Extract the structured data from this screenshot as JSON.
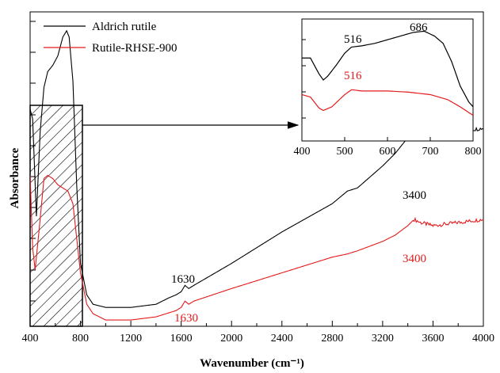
{
  "chart_data": [
    {
      "type": "line",
      "title": "",
      "xlabel": "Wavenumber (cm⁻¹)",
      "ylabel": "Absorbance",
      "xlim": [
        400,
        4000
      ],
      "ylim": [
        0,
        1
      ],
      "x_ticks": [
        "400",
        "800",
        "1200",
        "1600",
        "2000",
        "2400",
        "2800",
        "3200",
        "3600",
        "4000"
      ],
      "y_tick_labels_shown": false,
      "grid": false,
      "legend_position": "top-left",
      "series": [
        {
          "name": "Aldrich rutile",
          "color": "#000000",
          "points": [
            [
              400,
              0.69
            ],
            [
              420,
              0.66
            ],
            [
              450,
              0.35
            ],
            [
              480,
              0.62
            ],
            [
              510,
              0.76
            ],
            [
              540,
              0.81
            ],
            [
              580,
              0.83
            ],
            [
              620,
              0.86
            ],
            [
              660,
              0.92
            ],
            [
              690,
              0.94
            ],
            [
              710,
              0.92
            ],
            [
              740,
              0.78
            ],
            [
              770,
              0.45
            ],
            [
              800,
              0.2
            ],
            [
              850,
              0.1
            ],
            [
              900,
              0.07
            ],
            [
              1000,
              0.06
            ],
            [
              1200,
              0.06
            ],
            [
              1400,
              0.07
            ],
            [
              1500,
              0.09
            ],
            [
              1560,
              0.1
            ],
            [
              1600,
              0.11
            ],
            [
              1630,
              0.13
            ],
            [
              1660,
              0.12
            ],
            [
              1700,
              0.13
            ],
            [
              2000,
              0.2
            ],
            [
              2400,
              0.3
            ],
            [
              2800,
              0.39
            ],
            [
              2920,
              0.43
            ],
            [
              3000,
              0.44
            ],
            [
              3200,
              0.51
            ],
            [
              3300,
              0.55
            ],
            [
              3400,
              0.6
            ],
            [
              3450,
              0.62
            ],
            [
              3500,
              0.62
            ],
            [
              3600,
              0.62
            ],
            [
              3800,
              0.62
            ],
            [
              4000,
              0.63
            ]
          ]
        },
        {
          "name": "Rutile-RHSE-900",
          "color": "#e41a1c",
          "points": [
            [
              400,
              0.48
            ],
            [
              420,
              0.25
            ],
            [
              440,
              0.18
            ],
            [
              470,
              0.3
            ],
            [
              510,
              0.47
            ],
            [
              540,
              0.48
            ],
            [
              580,
              0.47
            ],
            [
              620,
              0.45
            ],
            [
              660,
              0.44
            ],
            [
              700,
              0.43
            ],
            [
              740,
              0.39
            ],
            [
              770,
              0.28
            ],
            [
              800,
              0.17
            ],
            [
              850,
              0.07
            ],
            [
              900,
              0.04
            ],
            [
              1000,
              0.02
            ],
            [
              1200,
              0.02
            ],
            [
              1400,
              0.03
            ],
            [
              1560,
              0.05
            ],
            [
              1600,
              0.06
            ],
            [
              1630,
              0.08
            ],
            [
              1660,
              0.07
            ],
            [
              1700,
              0.08
            ],
            [
              2000,
              0.12
            ],
            [
              2400,
              0.17
            ],
            [
              2800,
              0.22
            ],
            [
              2920,
              0.23
            ],
            [
              3000,
              0.24
            ],
            [
              3200,
              0.27
            ],
            [
              3300,
              0.29
            ],
            [
              3400,
              0.32
            ],
            [
              3450,
              0.34
            ],
            [
              3500,
              0.33
            ],
            [
              3600,
              0.32
            ],
            [
              3800,
              0.33
            ],
            [
              4000,
              0.34
            ]
          ]
        }
      ],
      "annotations": [
        {
          "text": "1630",
          "color": "#000000",
          "x": 1630,
          "y": 0.13
        },
        {
          "text": "1630",
          "color": "#e41a1c",
          "x": 1630,
          "y": 0.05
        },
        {
          "text": "3400",
          "color": "#000000",
          "x": 3400,
          "y": 0.6
        },
        {
          "text": "3400",
          "color": "#e41a1c",
          "x": 3400,
          "y": 0.32
        }
      ]
    },
    {
      "type": "line",
      "title": "",
      "xlim": [
        400,
        800
      ],
      "ylim": [
        0,
        1
      ],
      "x_ticks": [
        "400",
        "500",
        "600",
        "700",
        "800"
      ],
      "y_tick_labels_shown": false,
      "series": [
        {
          "name": "Aldrich rutile",
          "color": "#000000",
          "points": [
            [
              400,
              0.68
            ],
            [
              420,
              0.68
            ],
            [
              440,
              0.55
            ],
            [
              450,
              0.5
            ],
            [
              460,
              0.53
            ],
            [
              480,
              0.62
            ],
            [
              500,
              0.72
            ],
            [
              516,
              0.77
            ],
            [
              540,
              0.78
            ],
            [
              570,
              0.8
            ],
            [
              600,
              0.83
            ],
            [
              630,
              0.86
            ],
            [
              660,
              0.89
            ],
            [
              686,
              0.9
            ],
            [
              710,
              0.86
            ],
            [
              730,
              0.8
            ],
            [
              750,
              0.65
            ],
            [
              770,
              0.45
            ],
            [
              790,
              0.32
            ],
            [
              800,
              0.28
            ]
          ]
        },
        {
          "name": "Rutile-RHSE-900",
          "color": "#e41a1c",
          "points": [
            [
              400,
              0.38
            ],
            [
              420,
              0.36
            ],
            [
              440,
              0.27
            ],
            [
              450,
              0.25
            ],
            [
              470,
              0.28
            ],
            [
              500,
              0.38
            ],
            [
              516,
              0.42
            ],
            [
              540,
              0.41
            ],
            [
              570,
              0.41
            ],
            [
              600,
              0.41
            ],
            [
              650,
              0.4
            ],
            [
              700,
              0.38
            ],
            [
              740,
              0.34
            ],
            [
              770,
              0.28
            ],
            [
              800,
              0.21
            ]
          ]
        }
      ],
      "annotations": [
        {
          "text": "516",
          "color": "#000000",
          "x": 516,
          "y": 0.77
        },
        {
          "text": "686",
          "color": "#000000",
          "x": 686,
          "y": 0.9
        },
        {
          "text": "516",
          "color": "#e41a1c",
          "x": 516,
          "y": 0.42
        }
      ]
    }
  ]
}
